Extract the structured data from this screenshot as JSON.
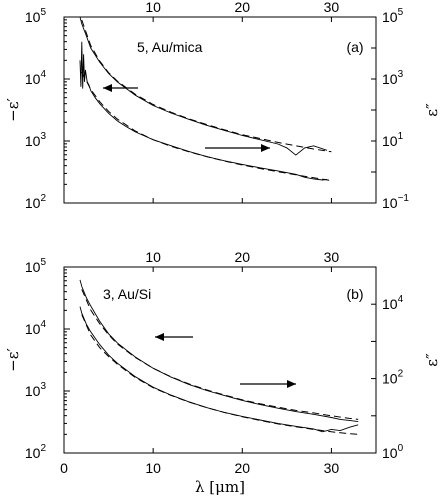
{
  "chart_data": [
    {
      "type": "line",
      "panel_label": "(a)",
      "annotation": "5, Au/mica",
      "left_ylabel": "−ε′",
      "right_ylabel": "ε″",
      "bottom_xticks": [],
      "top_xticks": [
        "10",
        "20",
        "30"
      ],
      "left_yticks": [
        {
          "base": "10",
          "exp": "2"
        },
        {
          "base": "10",
          "exp": "3"
        },
        {
          "base": "10",
          "exp": "4"
        },
        {
          "base": "10",
          "exp": "5"
        }
      ],
      "right_yticks": [
        {
          "base": "10",
          "exp": "5"
        },
        {
          "base": "10",
          "exp": "3"
        },
        {
          "base": "10",
          "exp": "1"
        },
        {
          "base": "10",
          "exp": "−1"
        }
      ],
      "xlim": [
        0,
        35
      ],
      "left_ylim_log10": [
        2,
        5
      ],
      "right_ylim_log10_inverted": [
        -1,
        5
      ],
      "series": [
        {
          "axis": "left",
          "style": "measured",
          "x": [
            1.8,
            1.9,
            2.0,
            2.1,
            2.2,
            2.3,
            2.4,
            2.6,
            2.8,
            3,
            3.5,
            4,
            5,
            6,
            7,
            8,
            10,
            12,
            14,
            16,
            18,
            20,
            22,
            24,
            26,
            27,
            28,
            29,
            29.5
          ],
          "y": [
            20000,
            7500,
            40000,
            7000,
            25000,
            9000,
            14000,
            9000,
            8000,
            6500,
            5000,
            4000,
            2800,
            2100,
            1700,
            1400,
            1050,
            840,
            680,
            560,
            480,
            420,
            370,
            330,
            290,
            260,
            245,
            235,
            240
          ]
        },
        {
          "axis": "left",
          "style": "fit",
          "x": [
            2,
            3,
            4,
            5,
            6,
            8,
            10,
            12,
            14,
            16,
            18,
            20,
            22,
            24,
            26,
            28,
            30
          ],
          "y": [
            13000,
            6800,
            4300,
            3000,
            2250,
            1450,
            1050,
            820,
            670,
            560,
            475,
            410,
            360,
            320,
            285,
            255,
            230
          ]
        },
        {
          "axis": "right",
          "style": "measured",
          "x": [
            1.8,
            2,
            2.5,
            3,
            4,
            5,
            6,
            8,
            10,
            12,
            14,
            16,
            18,
            20,
            22,
            24,
            25,
            26,
            27,
            28,
            29.5
          ],
          "y": [
            100000,
            60000,
            25000,
            10000,
            3500,
            1500,
            800,
            300,
            140,
            80,
            50,
            32,
            22,
            15,
            11,
            8,
            6,
            3.5,
            6,
            7,
            5
          ]
        },
        {
          "axis": "right",
          "style": "fit",
          "x": [
            2,
            3,
            4,
            5,
            6,
            8,
            10,
            12,
            14,
            16,
            18,
            20,
            22,
            24,
            26,
            28,
            30
          ],
          "y": [
            80000,
            12000,
            3800,
            1600,
            850,
            320,
            150,
            85,
            52,
            34,
            23,
            16,
            12,
            9,
            7,
            5.5,
            4.5
          ]
        }
      ],
      "arrows": [
        {
          "direction": "left"
        },
        {
          "direction": "right"
        }
      ]
    },
    {
      "type": "line",
      "panel_label": "(b)",
      "annotation": "3, Au/Si",
      "xlabel": "λ [μm]",
      "left_ylabel": "−ε′",
      "right_ylabel": "ε″",
      "bottom_xticks": [
        "0",
        "10",
        "20",
        "30"
      ],
      "top_xticks": [
        "10",
        "20",
        "30"
      ],
      "left_yticks": [
        {
          "base": "10",
          "exp": "2"
        },
        {
          "base": "10",
          "exp": "3"
        },
        {
          "base": "10",
          "exp": "4"
        },
        {
          "base": "10",
          "exp": "5"
        }
      ],
      "right_yticks": [
        {
          "base": "10",
          "exp": "4"
        },
        {
          "base": "10",
          "exp": "2"
        },
        {
          "base": "10",
          "exp": "0"
        }
      ],
      "xlim": [
        0,
        35
      ],
      "left_ylim_log10": [
        2,
        5
      ],
      "right_ylim_log10_inverted": [
        0,
        5
      ],
      "series": [
        {
          "axis": "left",
          "style": "measured",
          "x": [
            1.8,
            2,
            2.5,
            3,
            4,
            5,
            6,
            8,
            10,
            12,
            14,
            16,
            18,
            20,
            22,
            24,
            26,
            28,
            29,
            30,
            31,
            32,
            33
          ],
          "y": [
            23000,
            18000,
            12000,
            9000,
            5600,
            3800,
            2800,
            1700,
            1150,
            860,
            670,
            540,
            450,
            390,
            340,
            300,
            270,
            245,
            220,
            240,
            230,
            260,
            285
          ]
        },
        {
          "axis": "left",
          "style": "fit",
          "x": [
            2,
            3,
            4,
            5,
            6,
            8,
            10,
            12,
            14,
            16,
            18,
            20,
            22,
            24,
            26,
            28,
            30,
            32,
            33
          ],
          "y": [
            17000,
            8000,
            5000,
            3600,
            2700,
            1650,
            1130,
            850,
            665,
            540,
            450,
            385,
            335,
            295,
            265,
            240,
            220,
            205,
            200
          ]
        },
        {
          "axis": "right",
          "style": "measured",
          "x": [
            1.8,
            2,
            2.5,
            3,
            4,
            5,
            6,
            8,
            10,
            12,
            14,
            16,
            18,
            20,
            22,
            24,
            26,
            28,
            30,
            31,
            32,
            33
          ],
          "y": [
            45000,
            30000,
            15000,
            9000,
            3500,
            1600,
            900,
            380,
            190,
            110,
            70,
            48,
            35,
            26,
            20,
            16,
            13,
            11,
            9,
            8,
            7.5,
            7
          ]
        },
        {
          "axis": "right",
          "style": "fit",
          "x": [
            2,
            3,
            4,
            5,
            6,
            8,
            10,
            12,
            14,
            16,
            18,
            20,
            22,
            24,
            26,
            28,
            30,
            32,
            33
          ],
          "y": [
            25000,
            7000,
            3000,
            1500,
            850,
            370,
            190,
            112,
            72,
            50,
            36,
            27,
            21,
            17,
            14,
            12,
            10,
            8.5,
            8
          ]
        }
      ],
      "arrows": [
        {
          "direction": "left"
        },
        {
          "direction": "right"
        }
      ]
    }
  ]
}
